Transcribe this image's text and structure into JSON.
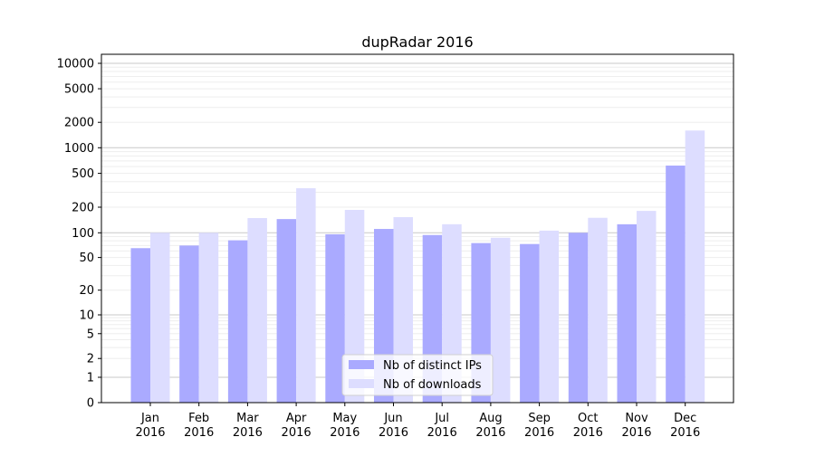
{
  "chart_data": {
    "type": "bar",
    "title": "dupRadar 2016",
    "xlabel": "",
    "ylabel": "",
    "yscale": "symlog",
    "ylim": [
      0,
      12000
    ],
    "yticks": [
      0,
      1,
      2,
      5,
      10,
      20,
      50,
      100,
      200,
      500,
      1000,
      2000,
      5000,
      10000
    ],
    "grid": true,
    "legend_position": "bottom-center",
    "categories": [
      [
        "Jan",
        "2016"
      ],
      [
        "Feb",
        "2016"
      ],
      [
        "Mar",
        "2016"
      ],
      [
        "Apr",
        "2016"
      ],
      [
        "May",
        "2016"
      ],
      [
        "Jun",
        "2016"
      ],
      [
        "Jul",
        "2016"
      ],
      [
        "Aug",
        "2016"
      ],
      [
        "Sep",
        "2016"
      ],
      [
        "Oct",
        "2016"
      ],
      [
        "Nov",
        "2016"
      ],
      [
        "Dec",
        "2016"
      ]
    ],
    "series": [
      {
        "name": "Nb of distinct IPs",
        "color": "#aaaaff",
        "values": [
          65,
          70,
          81,
          145,
          96,
          111,
          94,
          75,
          73,
          100,
          126,
          617
        ]
      },
      {
        "name": "Nb of downloads",
        "color": "#ddddff",
        "values": [
          100,
          100,
          149,
          334,
          186,
          153,
          126,
          87,
          106,
          150,
          181,
          1600
        ]
      }
    ]
  }
}
